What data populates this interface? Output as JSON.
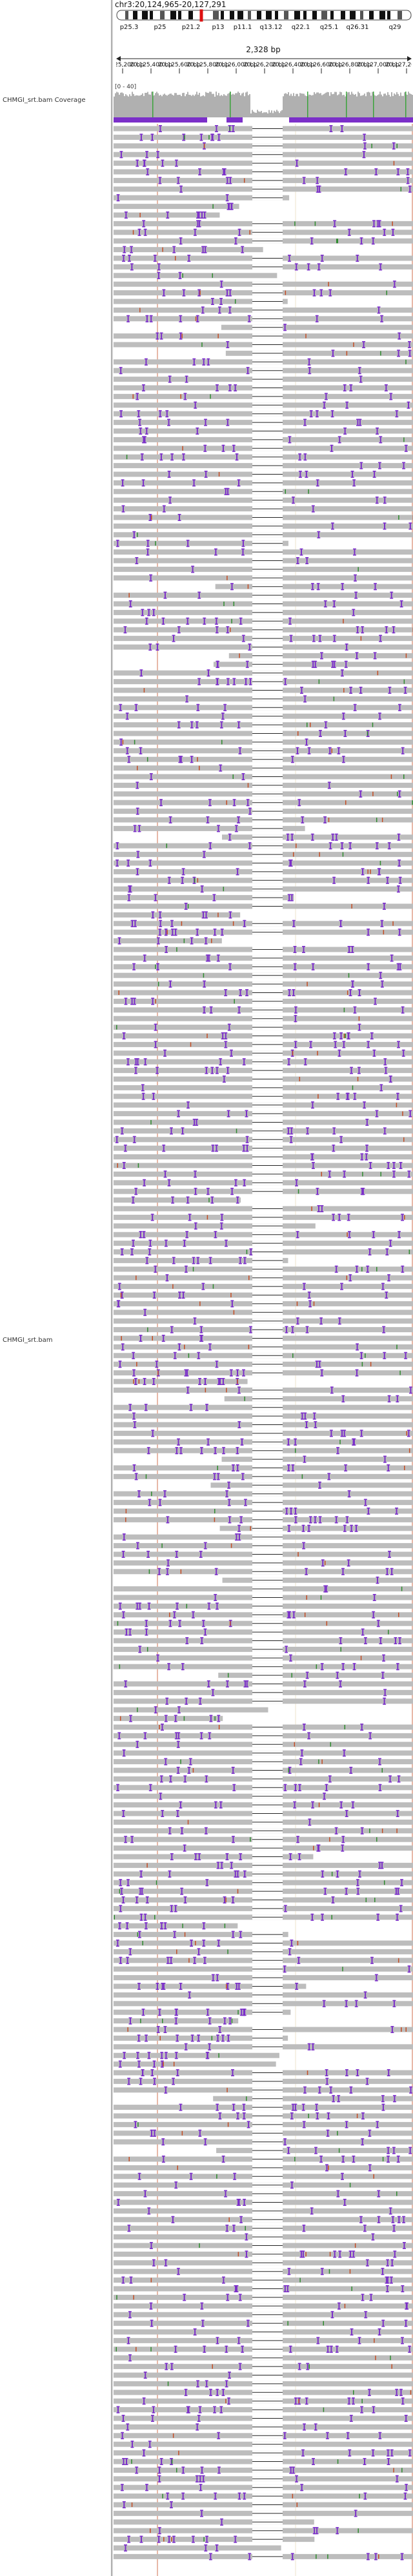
{
  "locus": "chr3:20,124,965-20,127,291",
  "span": "2,328 bp",
  "cytobands": [
    "p25.3",
    "p25",
    "p21.2",
    "p13",
    "p11.1",
    "q13.12",
    "q22.1",
    "q25.1",
    "q26.31",
    "q29"
  ],
  "ruler_ticks": [
    "20,125,200 bp",
    "20,125,400 bp",
    "20,125,600 bp",
    "20,125,800 bp",
    "20,126,000 bp",
    "20,126,200 bp",
    "20,126,400 bp",
    "20,126,600 bp",
    "20,126,800 bp",
    "20,127,000 bp",
    "20,127,200 bp"
  ],
  "coverage": {
    "label": "CHMGI_srt.bam Coverage",
    "range": "[0 - 40]"
  },
  "alignment_track": {
    "label": "CHMGI_srt.bam",
    "read_count": 282
  },
  "colors": {
    "read": "#bdbdbd",
    "insertion": "#7b2fc9",
    "coverage": "#b0b0b0",
    "mismatch_ref_line": "#c44d24",
    "guide_line": "#e8dcc2",
    "header_bg": "#ffffff"
  },
  "icons": [
    "ideogram-red-marker",
    "span-arrow-icon"
  ]
}
